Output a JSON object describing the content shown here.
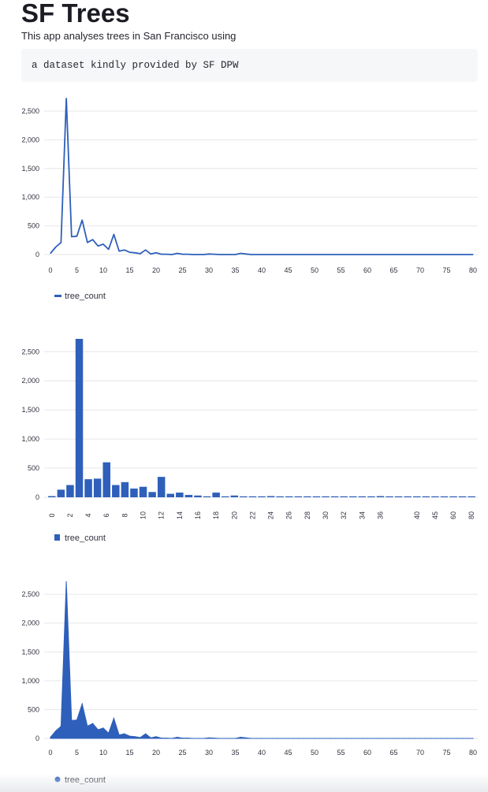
{
  "app": {
    "title": "SF Trees",
    "subtitle": "This app analyses trees in San Francisco using",
    "code": "a dataset kindly provided by SF DPW"
  },
  "colors": {
    "series": "#2e5fba",
    "grid": "#e6e6e6",
    "code_bg": "#f6f7f9"
  },
  "chart_data": [
    {
      "type": "line",
      "x": [
        0,
        1,
        2,
        3,
        4,
        5,
        6,
        7,
        8,
        9,
        10,
        11,
        12,
        13,
        14,
        15,
        16,
        17,
        18,
        19,
        20,
        21,
        22,
        23,
        24,
        25,
        26,
        27,
        28,
        29,
        30,
        31,
        32,
        33,
        34,
        35,
        36,
        37,
        38,
        39,
        40,
        41,
        42,
        43,
        44,
        45,
        46,
        47,
        48,
        49,
        50,
        51,
        52,
        53,
        54,
        55,
        56,
        57,
        58,
        59,
        60,
        61,
        62,
        63,
        64,
        65,
        66,
        67,
        68,
        69,
        70,
        71,
        72,
        73,
        74,
        75,
        76,
        77,
        78,
        79,
        80
      ],
      "series": [
        {
          "name": "tree_count",
          "values": [
            20,
            130,
            210,
            2720,
            310,
            320,
            600,
            210,
            260,
            150,
            180,
            90,
            350,
            60,
            80,
            40,
            30,
            15,
            80,
            10,
            30,
            5,
            5,
            0,
            20,
            5,
            5,
            0,
            0,
            0,
            10,
            5,
            0,
            0,
            0,
            0,
            20,
            10,
            0,
            0,
            0,
            0,
            0,
            0,
            0,
            0,
            0,
            0,
            0,
            0,
            0,
            0,
            0,
            0,
            0,
            0,
            0,
            0,
            0,
            0,
            0,
            0,
            0,
            0,
            0,
            0,
            0,
            0,
            0,
            0,
            0,
            0,
            0,
            0,
            0,
            0,
            0,
            0,
            0,
            0,
            0
          ]
        }
      ],
      "xticks": [
        0,
        5,
        10,
        15,
        20,
        25,
        30,
        35,
        40,
        45,
        50,
        55,
        60,
        65,
        70,
        75,
        80
      ],
      "yticks": [
        0,
        500,
        1000,
        1500,
        2000,
        2500
      ],
      "ytick_labels": [
        "0",
        "500",
        "1,000",
        "1,500",
        "2,000",
        "2,500"
      ],
      "ylim": [
        0,
        2720
      ],
      "grid": true,
      "legend": "bottom-left"
    },
    {
      "type": "bar",
      "categories": [
        "0",
        "1",
        "2",
        "3",
        "4",
        "5",
        "6",
        "7",
        "8",
        "9",
        "10",
        "11",
        "12",
        "13",
        "14",
        "15",
        "16",
        "17",
        "18",
        "19",
        "20",
        "21",
        "22",
        "23",
        "24",
        "25",
        "26",
        "27",
        "28",
        "29",
        "30",
        "31",
        "32",
        "33",
        "34",
        "35",
        "36",
        "37",
        "38",
        "39",
        "40",
        "42",
        "45",
        "50",
        "60",
        "70",
        "80"
      ],
      "series": [
        {
          "name": "tree_count",
          "values": [
            20,
            130,
            210,
            2720,
            310,
            320,
            600,
            210,
            260,
            150,
            180,
            90,
            350,
            60,
            80,
            40,
            30,
            15,
            80,
            10,
            30,
            5,
            5,
            0,
            20,
            5,
            5,
            0,
            0,
            0,
            10,
            5,
            0,
            0,
            0,
            0,
            20,
            10,
            0,
            0,
            0,
            0,
            0,
            0,
            0,
            0,
            0
          ]
        }
      ],
      "xtick_labels": [
        "0",
        "2",
        "4",
        "6",
        "8",
        "10",
        "12",
        "14",
        "16",
        "18",
        "20",
        "22",
        "24",
        "26",
        "28",
        "30",
        "32",
        "34",
        "36",
        "40",
        "45",
        "60",
        "80"
      ],
      "yticks": [
        0,
        500,
        1000,
        1500,
        2000,
        2500
      ],
      "ytick_labels": [
        "0",
        "500",
        "1,000",
        "1,500",
        "2,000",
        "2,500"
      ],
      "ylim": [
        0,
        2720
      ],
      "grid": true,
      "legend": "bottom-left"
    },
    {
      "type": "area",
      "x": [
        0,
        1,
        2,
        3,
        4,
        5,
        6,
        7,
        8,
        9,
        10,
        11,
        12,
        13,
        14,
        15,
        16,
        17,
        18,
        19,
        20,
        21,
        22,
        23,
        24,
        25,
        26,
        27,
        28,
        29,
        30,
        31,
        32,
        33,
        34,
        35,
        36,
        37,
        38,
        39,
        40,
        41,
        42,
        43,
        44,
        45,
        46,
        47,
        48,
        49,
        50,
        51,
        52,
        53,
        54,
        55,
        56,
        57,
        58,
        59,
        60,
        61,
        62,
        63,
        64,
        65,
        66,
        67,
        68,
        69,
        70,
        71,
        72,
        73,
        74,
        75,
        76,
        77,
        78,
        79,
        80
      ],
      "series": [
        {
          "name": "tree_count",
          "values": [
            20,
            130,
            210,
            2720,
            310,
            320,
            600,
            210,
            260,
            150,
            180,
            90,
            350,
            60,
            80,
            40,
            30,
            15,
            80,
            10,
            30,
            5,
            5,
            0,
            20,
            5,
            5,
            0,
            0,
            0,
            10,
            5,
            0,
            0,
            0,
            0,
            20,
            10,
            0,
            0,
            0,
            0,
            0,
            0,
            0,
            0,
            0,
            0,
            0,
            0,
            0,
            0,
            0,
            0,
            0,
            0,
            0,
            0,
            0,
            0,
            0,
            0,
            0,
            0,
            0,
            0,
            0,
            0,
            0,
            0,
            0,
            0,
            0,
            0,
            0,
            0,
            0,
            0,
            0,
            0,
            0
          ]
        }
      ],
      "xticks": [
        0,
        5,
        10,
        15,
        20,
        25,
        30,
        35,
        40,
        45,
        50,
        55,
        60,
        65,
        70,
        75,
        80
      ],
      "yticks": [
        0,
        500,
        1000,
        1500,
        2000,
        2500
      ],
      "ytick_labels": [
        "0",
        "500",
        "1,000",
        "1,500",
        "2,000",
        "2,500"
      ],
      "ylim": [
        0,
        2720
      ],
      "grid": true,
      "legend": "bottom-left"
    }
  ]
}
